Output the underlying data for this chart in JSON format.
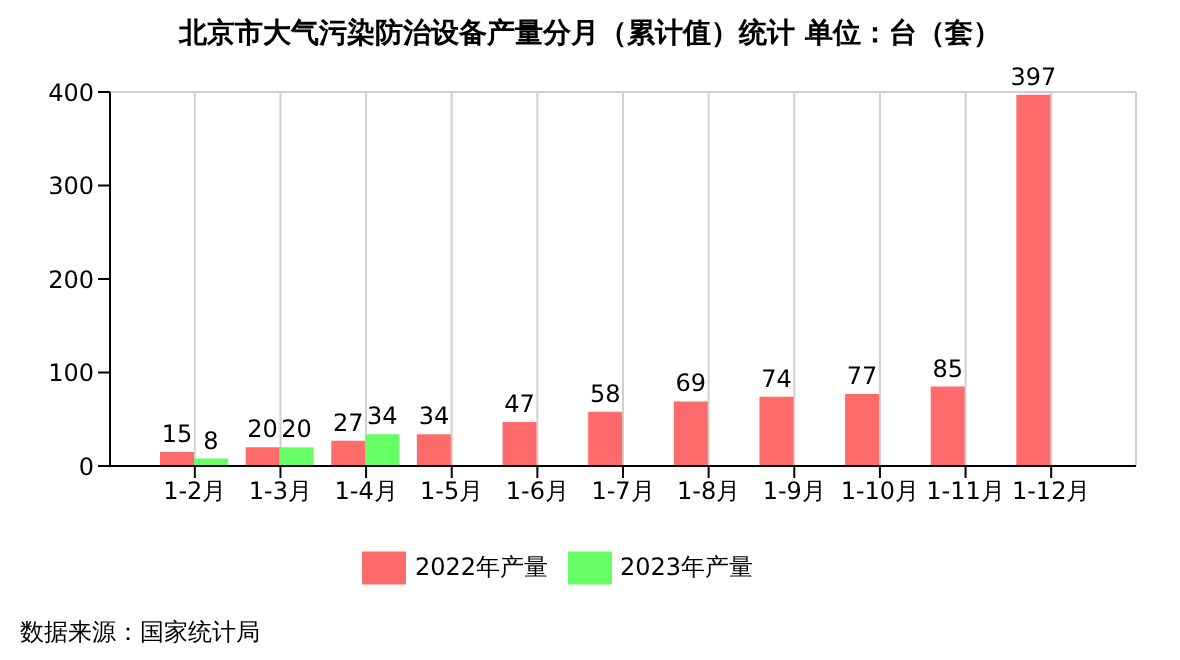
{
  "chart_data": {
    "type": "bar",
    "title": "北京市大气污染防治设备产量分月（累计值）统计  单位：台（套）",
    "categories": [
      "1-2月",
      "1-3月",
      "1-4月",
      "1-5月",
      "1-6月",
      "1-7月",
      "1-8月",
      "1-9月",
      "1-10月",
      "1-11月",
      "1-12月"
    ],
    "series": [
      {
        "name": "2022年产量",
        "color": "#ff6b6b",
        "values": [
          15,
          20,
          27,
          34,
          47,
          58,
          69,
          74,
          77,
          85,
          397
        ]
      },
      {
        "name": "2023年产量",
        "color": "#66ff66",
        "values": [
          8,
          20,
          34,
          null,
          null,
          null,
          null,
          null,
          null,
          null,
          null
        ]
      }
    ],
    "ylim": [
      0,
      400
    ],
    "yticks": [
      0,
      100,
      200,
      300,
      400
    ],
    "grid": true,
    "legend": "bottom",
    "data_labels": true,
    "annotations": [
      "数据来源：国家统计局"
    ]
  }
}
